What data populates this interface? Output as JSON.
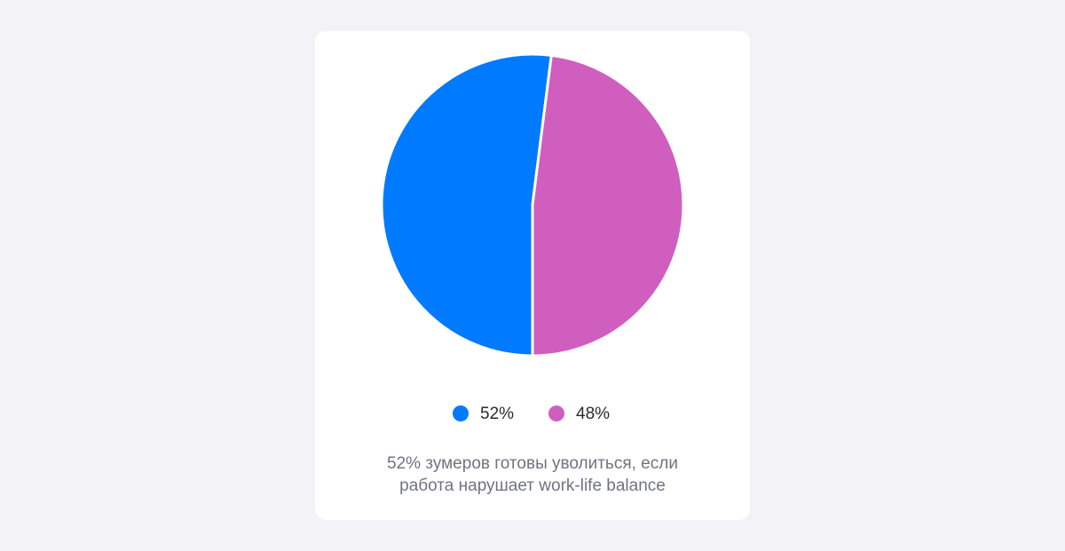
{
  "chart_data": {
    "type": "pie",
    "categories": [
      "52%",
      "48%"
    ],
    "values": [
      52,
      48
    ],
    "colors": [
      "#007aff",
      "#d05ebf"
    ],
    "caption": "52% зумеров готовы уволиться, если\nработа нарушает work-life balance"
  }
}
